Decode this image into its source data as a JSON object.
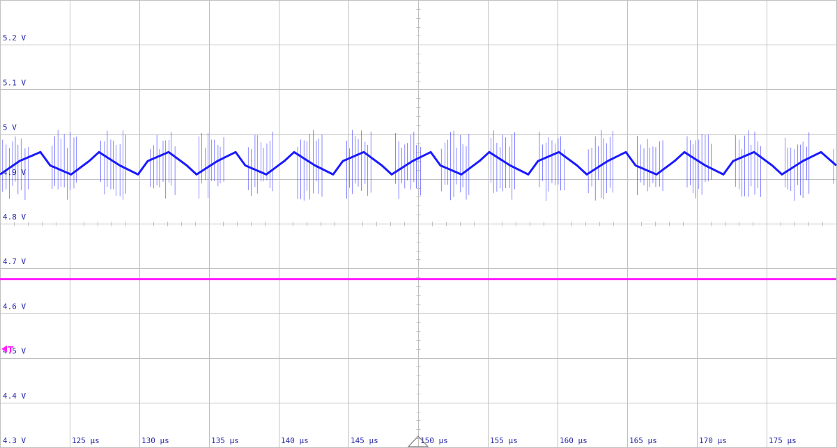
{
  "chart_data": {
    "type": "line",
    "title": "",
    "xlabel": "",
    "ylabel": "",
    "x_unit": "µs",
    "y_unit": "V",
    "xlim": [
      120,
      180
    ],
    "ylim": [
      4.3,
      5.3
    ],
    "x_ticks": [
      125,
      130,
      135,
      140,
      145,
      150,
      155,
      160,
      165,
      170,
      175
    ],
    "x_tick_labels": [
      "125 µs",
      "130 µs",
      "135 µs",
      "140 µs",
      "145 µs",
      "150 µs",
      "155 µs",
      "160 µs",
      "165 µs",
      "170 µs",
      "175 µs"
    ],
    "y_ticks": [
      4.3,
      4.4,
      4.5,
      4.6,
      4.7,
      4.8,
      4.9,
      5.0,
      5.1,
      5.2
    ],
    "y_tick_labels": [
      "4.3 V",
      "4.4 V",
      "4.5 V",
      "4.6 V",
      "4.7 V",
      "4.8 V",
      "4.9 V",
      "5 V",
      "5.1 V",
      "5.2 V"
    ],
    "grid": true,
    "series": [
      {
        "color": "#1a1aff",
        "waveform": "sawtooth ripple with switching spikes",
        "mean": 4.93,
        "ripple_peak_to_peak": 0.06,
        "period": 3.5,
        "spike_min": 4.85,
        "spike_max": 5.01,
        "x": [
          120,
          121.4,
          122.9,
          123.6,
          125.1,
          126.4,
          127.1,
          128.6,
          129.9,
          130.6,
          132.1,
          133.4,
          134.1,
          135.6,
          136.9,
          137.6,
          139.1,
          140.4,
          141.1,
          142.6,
          143.9,
          144.6,
          146.1,
          147.4,
          148.1,
          149.6,
          150.9,
          151.6,
          153.1,
          154.4,
          155.1,
          156.6,
          157.9,
          158.6,
          160.1,
          161.4,
          162.1,
          163.6,
          164.9,
          165.6,
          167.1,
          168.4,
          169.1,
          170.6,
          171.9,
          172.6,
          174.1,
          175.4,
          176.1,
          177.6,
          178.9,
          180
        ],
        "y": [
          4.91,
          4.94,
          4.96,
          4.93,
          4.91,
          4.94,
          4.96,
          4.93,
          4.91,
          4.94,
          4.96,
          4.93,
          4.91,
          4.94,
          4.96,
          4.93,
          4.91,
          4.94,
          4.96,
          4.93,
          4.91,
          4.94,
          4.96,
          4.93,
          4.91,
          4.94,
          4.96,
          4.93,
          4.91,
          4.94,
          4.96,
          4.93,
          4.91,
          4.94,
          4.96,
          4.93,
          4.91,
          4.94,
          4.96,
          4.93,
          4.91,
          4.94,
          4.96,
          4.93,
          4.91,
          4.94,
          4.96,
          4.93,
          4.91,
          4.94,
          4.96,
          4.93
        ]
      },
      {
        "color": "#ff20ff",
        "waveform": "flat",
        "x": [
          120,
          180
        ],
        "y": [
          4.676,
          4.676
        ]
      }
    ],
    "trigger": {
      "label": "T",
      "level": 4.52,
      "time": 150,
      "color": "#ff20ff"
    }
  },
  "colors": {
    "background": "#ffffff",
    "grid": "#c0c0c0",
    "label": "#2a2aa8"
  }
}
